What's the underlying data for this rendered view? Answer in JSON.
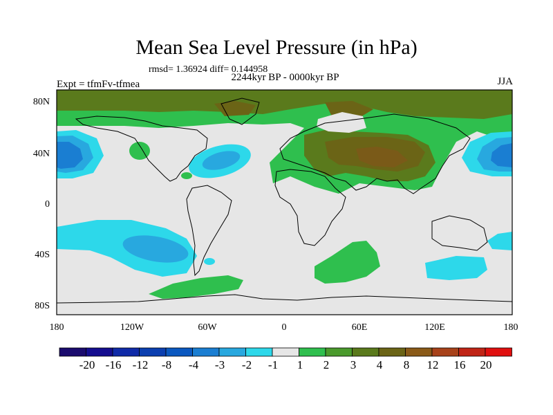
{
  "title": "Mean Sea Level Pressure (in hPa)",
  "stats": "rmsd= 1.36924 diff= 0.144958",
  "subtitle": "2244kyr BP - 0000kyr BP",
  "experiment": "Expt = tfmFv-tfmea",
  "season": "JJA",
  "lat_labels": [
    "80N",
    "40N",
    "0",
    "40S",
    "80S"
  ],
  "lon_labels": [
    "180",
    "120W",
    "60W",
    "0",
    "60E",
    "120E",
    "180"
  ],
  "colorbar": {
    "labels": [
      "-20",
      "-16",
      "-12",
      "-8",
      "-4",
      "-3",
      "-2",
      "-1",
      "1",
      "2",
      "3",
      "4",
      "8",
      "12",
      "16",
      "20"
    ],
    "colors": [
      "#1a0b6e",
      "#140d8f",
      "#0f2aa8",
      "#0b3fb0",
      "#0a58c0",
      "#1a7ed2",
      "#28a8df",
      "#2dd8ea",
      "#e6e6e6",
      "#2fbf4e",
      "#4a9a2c",
      "#5a7a1c",
      "#6b6416",
      "#8a5a18",
      "#a8421a",
      "#c02416",
      "#e00f0f"
    ]
  },
  "colors": {
    "neutral": "#e6e6e6",
    "pos1": "#2fbf4e",
    "pos2": "#4a9a2c",
    "pos3": "#5a7a1c",
    "pos4": "#6b6416",
    "neg1": "#2dd8ea",
    "neg2": "#28a8df",
    "neg3": "#1a7ed2",
    "neg4": "#0a58c0"
  }
}
